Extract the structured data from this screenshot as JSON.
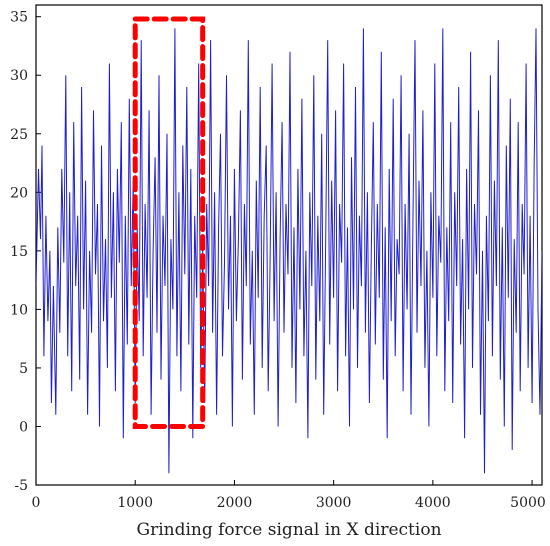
{
  "chart_data": {
    "type": "line",
    "title": "",
    "xlabel": "Grinding force signal in X direction",
    "ylabel": "",
    "xlim": [
      0,
      5100
    ],
    "ylim": [
      -5,
      36
    ],
    "x_ticks": [
      0,
      1000,
      2000,
      3000,
      4000,
      5000
    ],
    "x_tick_labels": [
      "0",
      "1000",
      "2000",
      "3000",
      "4000",
      "5000"
    ],
    "y_ticks": [
      35,
      30,
      25,
      20,
      15,
      10,
      5,
      0,
      -5
    ],
    "y_tick_labels": [
      "35",
      "30",
      "25",
      "20",
      "15",
      "10",
      "5",
      "0",
      "-5"
    ],
    "grid": false,
    "legend": "none",
    "series": [
      {
        "color": "#1f1fd0",
        "points": [
          [
            0,
            12
          ],
          [
            25,
            22
          ],
          [
            45,
            16
          ],
          [
            60,
            24
          ],
          [
            80,
            6
          ],
          [
            100,
            18
          ],
          [
            120,
            9
          ],
          [
            140,
            15
          ],
          [
            155,
            2
          ],
          [
            175,
            12
          ],
          [
            200,
            1
          ],
          [
            220,
            17
          ],
          [
            240,
            8
          ],
          [
            260,
            22
          ],
          [
            280,
            14
          ],
          [
            300,
            30
          ],
          [
            320,
            6
          ],
          [
            340,
            20
          ],
          [
            360,
            3
          ],
          [
            380,
            26
          ],
          [
            400,
            12
          ],
          [
            420,
            18
          ],
          [
            440,
            4
          ],
          [
            460,
            29
          ],
          [
            480,
            10
          ],
          [
            500,
            21
          ],
          [
            520,
            1
          ],
          [
            540,
            15
          ],
          [
            560,
            8
          ],
          [
            580,
            27
          ],
          [
            600,
            13
          ],
          [
            620,
            19
          ],
          [
            640,
            0
          ],
          [
            660,
            24
          ],
          [
            680,
            9
          ],
          [
            700,
            16
          ],
          [
            720,
            5
          ],
          [
            740,
            31
          ],
          [
            760,
            11
          ],
          [
            780,
            20
          ],
          [
            800,
            3
          ],
          [
            820,
            22
          ],
          [
            840,
            14
          ],
          [
            860,
            26
          ],
          [
            880,
            -1
          ],
          [
            900,
            18
          ],
          [
            920,
            7
          ],
          [
            940,
            28
          ],
          [
            960,
            12
          ],
          [
            980,
            21
          ],
          [
            1000,
            2
          ],
          [
            1020,
            17
          ],
          [
            1040,
            9
          ],
          [
            1060,
            33
          ],
          [
            1080,
            6
          ],
          [
            1100,
            19
          ],
          [
            1120,
            11
          ],
          [
            1140,
            27
          ],
          [
            1160,
            1
          ],
          [
            1180,
            15
          ],
          [
            1200,
            23
          ],
          [
            1220,
            8
          ],
          [
            1240,
            30
          ],
          [
            1260,
            4
          ],
          [
            1280,
            18
          ],
          [
            1300,
            12
          ],
          [
            1320,
            25
          ],
          [
            1340,
            -4
          ],
          [
            1360,
            16
          ],
          [
            1380,
            10
          ],
          [
            1400,
            34
          ],
          [
            1420,
            6
          ],
          [
            1440,
            20
          ],
          [
            1460,
            3
          ],
          [
            1480,
            24
          ],
          [
            1500,
            13
          ],
          [
            1520,
            29
          ],
          [
            1540,
            7
          ],
          [
            1560,
            22
          ],
          [
            1580,
            -1
          ],
          [
            1600,
            18
          ],
          [
            1620,
            11
          ],
          [
            1640,
            31
          ],
          [
            1660,
            5
          ],
          [
            1680,
            15
          ],
          [
            1700,
            2
          ],
          [
            1720,
            19
          ],
          [
            1740,
            12
          ],
          [
            1760,
            33
          ],
          [
            1780,
            8
          ],
          [
            1800,
            20
          ],
          [
            1820,
            1
          ],
          [
            1840,
            17
          ],
          [
            1860,
            25
          ],
          [
            1880,
            6
          ],
          [
            1900,
            14
          ],
          [
            1920,
            30
          ],
          [
            1940,
            10
          ],
          [
            1960,
            18
          ],
          [
            1980,
            0
          ],
          [
            2000,
            22
          ],
          [
            2020,
            9
          ],
          [
            2040,
            16
          ],
          [
            2060,
            27
          ],
          [
            2080,
            4
          ],
          [
            2100,
            19
          ],
          [
            2120,
            12
          ],
          [
            2140,
            33
          ],
          [
            2160,
            7
          ],
          [
            2180,
            15
          ],
          [
            2200,
            1
          ],
          [
            2220,
            21
          ],
          [
            2240,
            11
          ],
          [
            2260,
            29
          ],
          [
            2280,
            5
          ],
          [
            2300,
            18
          ],
          [
            2320,
            24
          ],
          [
            2340,
            3
          ],
          [
            2360,
            14
          ],
          [
            2380,
            31
          ],
          [
            2400,
            9
          ],
          [
            2420,
            20
          ],
          [
            2440,
            0
          ],
          [
            2460,
            16
          ],
          [
            2480,
            26
          ],
          [
            2500,
            8
          ],
          [
            2520,
            19
          ],
          [
            2540,
            13
          ],
          [
            2560,
            32
          ],
          [
            2580,
            5
          ],
          [
            2600,
            17
          ],
          [
            2620,
            2
          ],
          [
            2640,
            22
          ],
          [
            2660,
            10
          ],
          [
            2680,
            28
          ],
          [
            2700,
            6
          ],
          [
            2720,
            15
          ],
          [
            2740,
            -1
          ],
          [
            2760,
            20
          ],
          [
            2780,
            12
          ],
          [
            2800,
            30
          ],
          [
            2820,
            4
          ],
          [
            2840,
            18
          ],
          [
            2860,
            9
          ],
          [
            2880,
            25
          ],
          [
            2900,
            1
          ],
          [
            2920,
            16
          ],
          [
            2940,
            33
          ],
          [
            2960,
            7
          ],
          [
            2980,
            21
          ],
          [
            3000,
            11
          ],
          [
            3020,
            27
          ],
          [
            3040,
            3
          ],
          [
            3060,
            19
          ],
          [
            3080,
            14
          ],
          [
            3100,
            31
          ],
          [
            3120,
            6
          ],
          [
            3140,
            17
          ],
          [
            3160,
            0
          ],
          [
            3180,
            23
          ],
          [
            3200,
            10
          ],
          [
            3220,
            29
          ],
          [
            3240,
            5
          ],
          [
            3260,
            18
          ],
          [
            3280,
            12
          ],
          [
            3300,
            34
          ],
          [
            3320,
            8
          ],
          [
            3340,
            20
          ],
          [
            3360,
            2
          ],
          [
            3380,
            15
          ],
          [
            3400,
            26
          ],
          [
            3420,
            7
          ],
          [
            3440,
            19
          ],
          [
            3460,
            11
          ],
          [
            3480,
            32
          ],
          [
            3500,
            4
          ],
          [
            3520,
            17
          ],
          [
            3540,
            -1
          ],
          [
            3560,
            22
          ],
          [
            3580,
            9
          ],
          [
            3600,
            28
          ],
          [
            3620,
            6
          ],
          [
            3640,
            16
          ],
          [
            3660,
            13
          ],
          [
            3680,
            30
          ],
          [
            3700,
            3
          ],
          [
            3720,
            19
          ],
          [
            3740,
            10
          ],
          [
            3760,
            25
          ],
          [
            3780,
            1
          ],
          [
            3800,
            18
          ],
          [
            3820,
            33
          ],
          [
            3840,
            8
          ],
          [
            3860,
            21
          ],
          [
            3880,
            12
          ],
          [
            3900,
            27
          ],
          [
            3920,
            5
          ],
          [
            3940,
            15
          ],
          [
            3960,
            0
          ],
          [
            3980,
            20
          ],
          [
            4000,
            11
          ],
          [
            4020,
            31
          ],
          [
            4040,
            6
          ],
          [
            4060,
            18
          ],
          [
            4080,
            14
          ],
          [
            4100,
            34
          ],
          [
            4120,
            3
          ],
          [
            4140,
            17
          ],
          [
            4160,
            9
          ],
          [
            4180,
            26
          ],
          [
            4200,
            2
          ],
          [
            4220,
            20
          ],
          [
            4240,
            12
          ],
          [
            4260,
            29
          ],
          [
            4280,
            7
          ],
          [
            4300,
            16
          ],
          [
            4320,
            -1
          ],
          [
            4340,
            22
          ],
          [
            4360,
            10
          ],
          [
            4380,
            32
          ],
          [
            4400,
            5
          ],
          [
            4420,
            19
          ],
          [
            4440,
            13
          ],
          [
            4460,
            27
          ],
          [
            4480,
            1
          ],
          [
            4500,
            15
          ],
          [
            4520,
            -4
          ],
          [
            4540,
            18
          ],
          [
            4560,
            9
          ],
          [
            4580,
            30
          ],
          [
            4600,
            6
          ],
          [
            4620,
            21
          ],
          [
            4640,
            12
          ],
          [
            4660,
            33
          ],
          [
            4680,
            4
          ],
          [
            4700,
            17
          ],
          [
            4720,
            0
          ],
          [
            4740,
            24
          ],
          [
            4760,
            11
          ],
          [
            4780,
            28
          ],
          [
            4800,
            -2
          ],
          [
            4820,
            16
          ],
          [
            4840,
            8
          ],
          [
            4860,
            26
          ],
          [
            4880,
            3
          ],
          [
            4900,
            19
          ],
          [
            4920,
            13
          ],
          [
            4940,
            31
          ],
          [
            4960,
            5
          ],
          [
            4980,
            18
          ],
          [
            5000,
            2
          ],
          [
            5020,
            22
          ],
          [
            5040,
            34
          ],
          [
            5060,
            10
          ],
          [
            5080,
            1
          ],
          [
            5100,
            15
          ]
        ]
      }
    ],
    "annotation": {
      "type": "dashed-rectangle",
      "color": "#ff0000",
      "x_range": [
        1000,
        1680
      ],
      "y_range": [
        0,
        34.8
      ]
    }
  }
}
